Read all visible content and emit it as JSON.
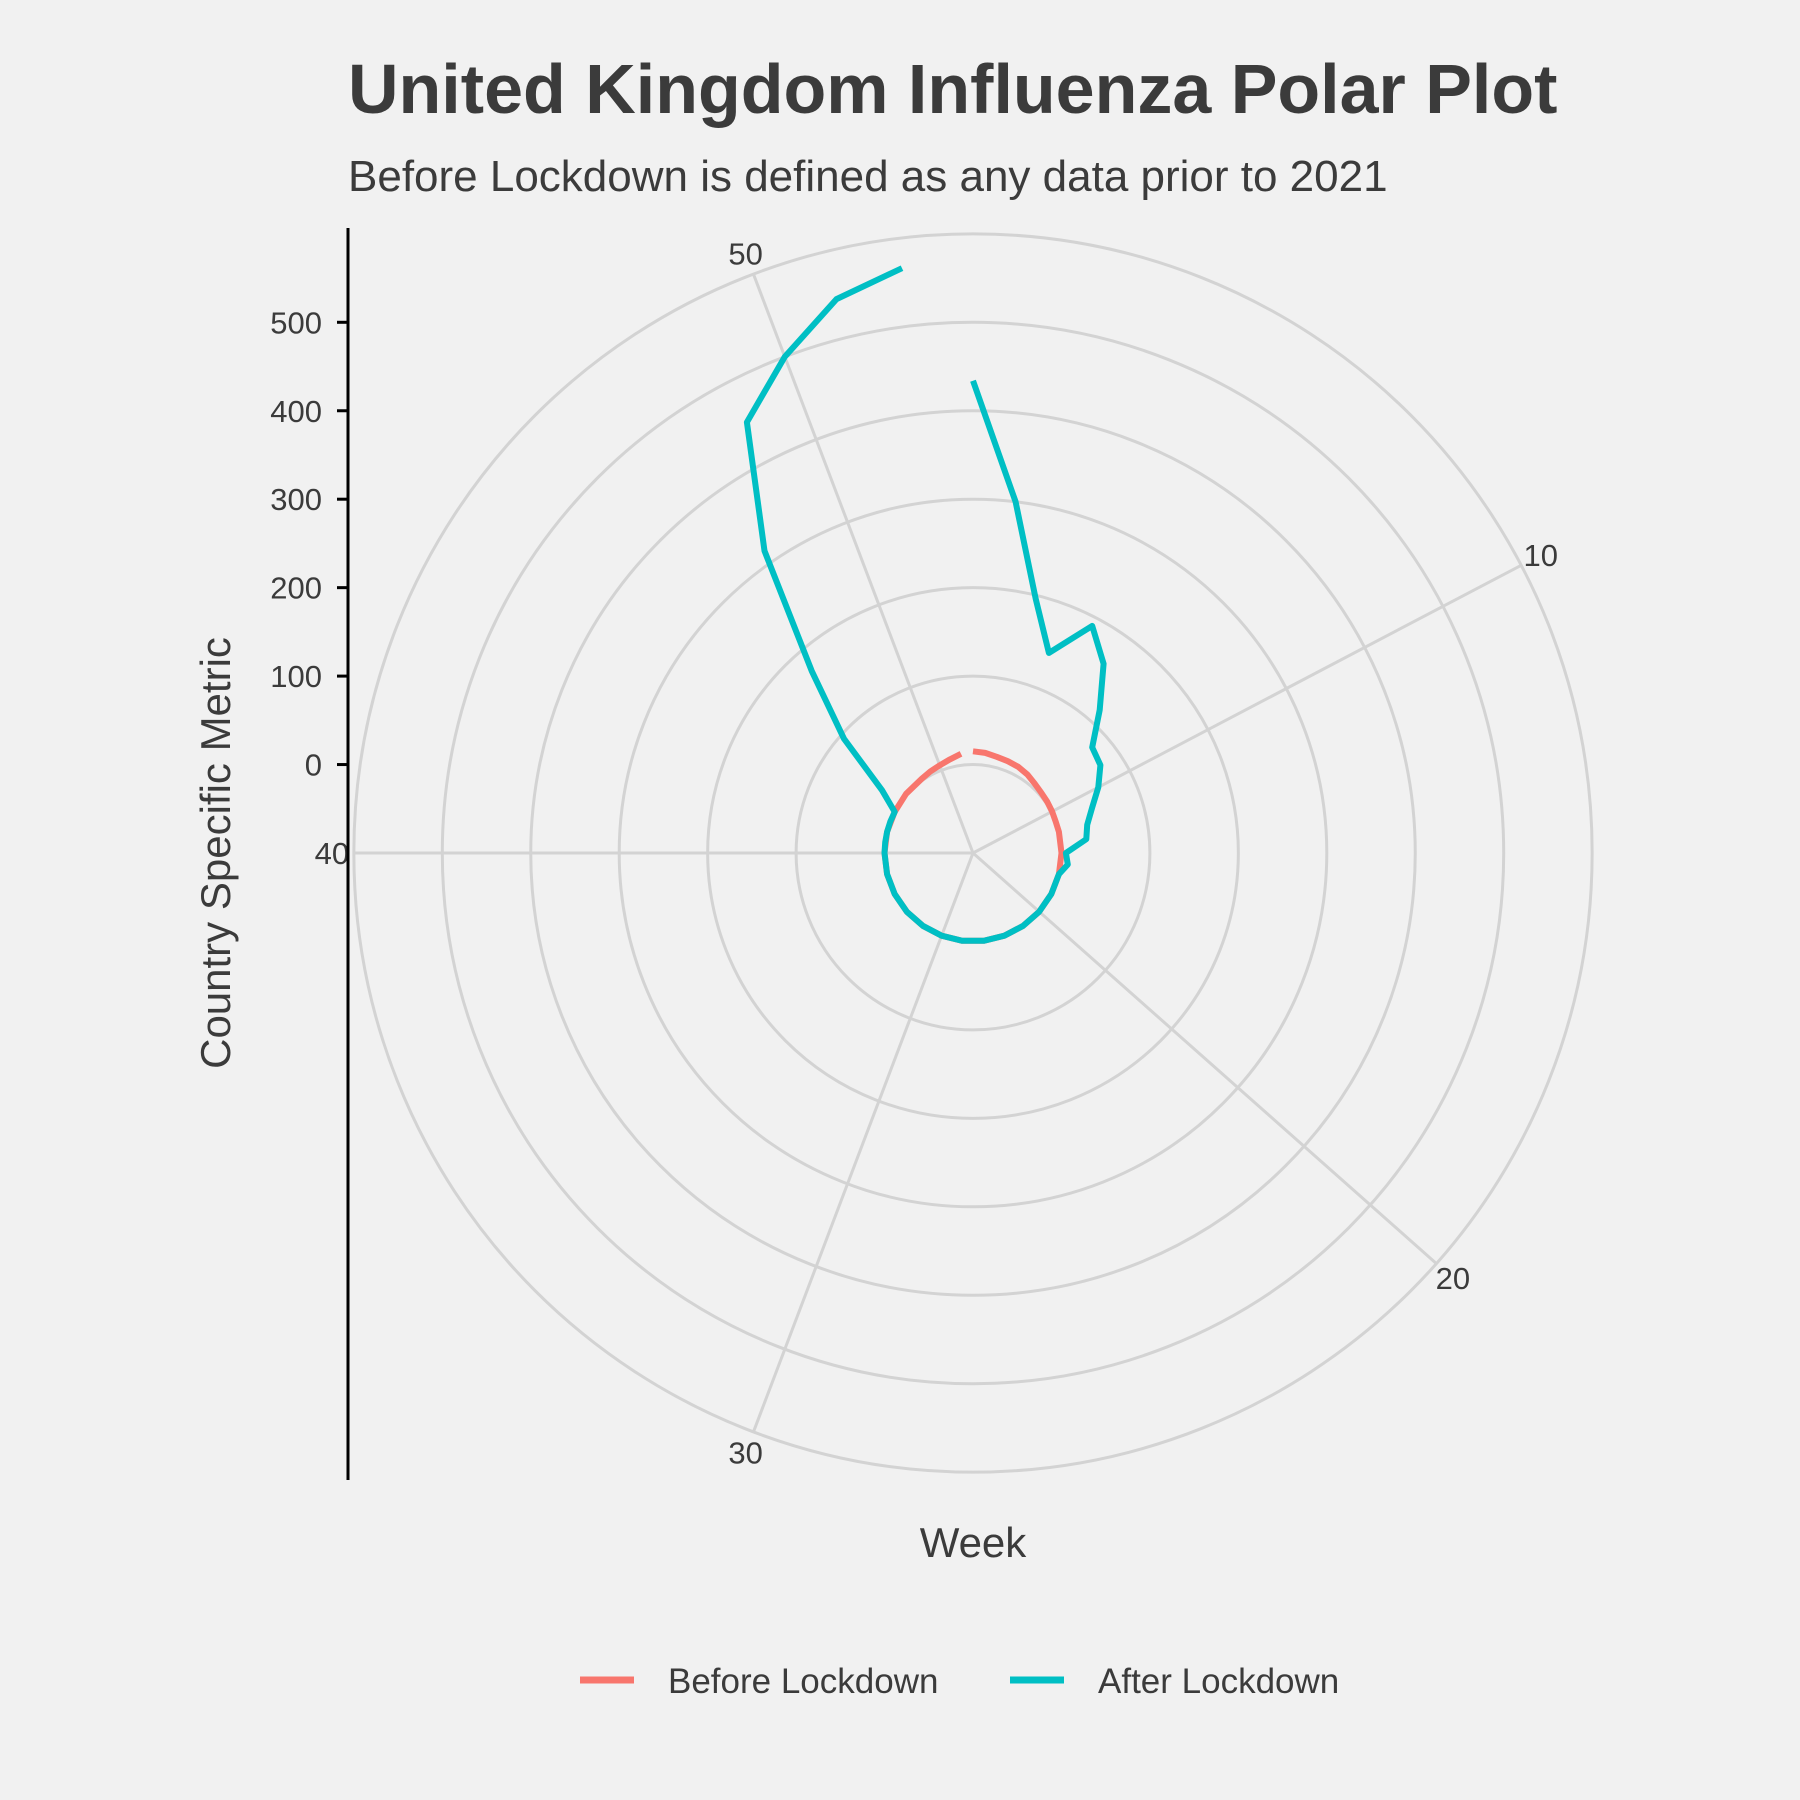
{
  "chart_data": {
    "type": "line",
    "coordinate_system": "polar",
    "title": "United Kingdom Influenza Polar Plot",
    "subtitle": "Before Lockdown is defined as any data prior to 2021",
    "xlabel": "Week",
    "ylabel": "Country Specific Metric",
    "theta_ticks": [
      "10",
      "20",
      "30",
      "40",
      "50"
    ],
    "theta_tick_values": [
      10,
      20,
      30,
      40,
      50
    ],
    "theta_range": [
      1,
      53
    ],
    "r_ticks": [
      "0",
      "100",
      "200",
      "300",
      "400",
      "500"
    ],
    "r_tick_values": [
      0,
      100,
      200,
      300,
      400,
      500
    ],
    "r_grid_values": [
      -100,
      0,
      100,
      200,
      300,
      400,
      500,
      600
    ],
    "r_range": [
      -100,
      600
    ],
    "grid": true,
    "legend_position": "bottom",
    "series": [
      {
        "name": "Before Lockdown",
        "color": "#f8766d",
        "points": [
          [
            1,
            15
          ],
          [
            2,
            14
          ],
          [
            3,
            12
          ],
          [
            4,
            11
          ],
          [
            5,
            10
          ],
          [
            6,
            8
          ],
          [
            7,
            5
          ],
          [
            8,
            3
          ],
          [
            9,
            2
          ],
          [
            10,
            1
          ],
          [
            11,
            0
          ],
          [
            12,
            0
          ],
          [
            14,
            0
          ],
          [
            16,
            0
          ],
          [
            18,
            0
          ],
          [
            20,
            0
          ],
          [
            22,
            0
          ],
          [
            24,
            0
          ],
          [
            26,
            0
          ],
          [
            28,
            0
          ],
          [
            30,
            0
          ],
          [
            32,
            0
          ],
          [
            34,
            0
          ],
          [
            36,
            0
          ],
          [
            38,
            0
          ],
          [
            40,
            0
          ],
          [
            42,
            0
          ],
          [
            44,
            0
          ],
          [
            46,
            1
          ],
          [
            48,
            2
          ],
          [
            49,
            4
          ],
          [
            50,
            6
          ],
          [
            51,
            9
          ],
          [
            52,
            13
          ]
        ]
      },
      {
        "name": "After Lockdown",
        "color": "#00bfc4",
        "points": [
          [
            1,
            434
          ],
          [
            2,
            300
          ],
          [
            3,
            196
          ],
          [
            4,
            142
          ],
          [
            5,
            190
          ],
          [
            6,
            160
          ],
          [
            7,
            116
          ],
          [
            8,
            80
          ],
          [
            9,
            75
          ],
          [
            10,
            60
          ],
          [
            11,
            44
          ],
          [
            12,
            33
          ],
          [
            13,
            29
          ],
          [
            14,
            5
          ],
          [
            15,
            8
          ],
          [
            16,
            0
          ],
          [
            18,
            0
          ],
          [
            20,
            0
          ],
          [
            22,
            0
          ],
          [
            24,
            0
          ],
          [
            26,
            0
          ],
          [
            28,
            0
          ],
          [
            30,
            0
          ],
          [
            32,
            0
          ],
          [
            34,
            0
          ],
          [
            36,
            0
          ],
          [
            38,
            0
          ],
          [
            40,
            0
          ],
          [
            41,
            0
          ],
          [
            42,
            0
          ],
          [
            43,
            0
          ],
          [
            44,
            0
          ],
          [
            45,
            25
          ],
          [
            46,
            95
          ],
          [
            47,
            175
          ],
          [
            48,
            315
          ],
          [
            49,
            450
          ],
          [
            50,
            500
          ],
          [
            51,
            545
          ],
          [
            52,
            566
          ]
        ]
      }
    ]
  }
}
